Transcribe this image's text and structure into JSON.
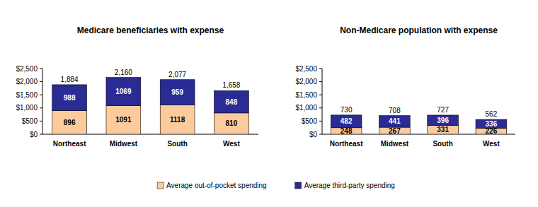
{
  "chart_data": [
    {
      "type": "bar",
      "title": "Medicare beneficiaries with expense",
      "categories": [
        "Northeast",
        "Midwest",
        "South",
        "West"
      ],
      "series": [
        {
          "name": "Average out-of-pocket spending",
          "color": "#fbcb9b",
          "values": [
            896,
            1091,
            1118,
            810
          ]
        },
        {
          "name": "Average third-party spending",
          "color": "#2b2b96",
          "values": [
            988,
            1069,
            959,
            848
          ]
        }
      ],
      "totals": [
        1884,
        2160,
        2077,
        1658
      ],
      "total_labels": [
        "1,884",
        "2,160",
        "2,077",
        "1,658"
      ],
      "ylim": [
        0,
        2500
      ],
      "yticks": [
        {
          "value": 0,
          "label": "$0"
        },
        {
          "value": 500,
          "label": "$500"
        },
        {
          "value": 1000,
          "label": "$1,000"
        },
        {
          "value": 1500,
          "label": "$1,500"
        },
        {
          "value": 2000,
          "label": "$2,000"
        },
        {
          "value": 2500,
          "label": "$2,500"
        }
      ],
      "stacked": true,
      "data_labels": true,
      "grid": false,
      "legend": "bottom"
    },
    {
      "type": "bar",
      "title": "Non-Medicare population with expense",
      "categories": [
        "Northeast",
        "Midwest",
        "South",
        "West"
      ],
      "series": [
        {
          "color": "#fbcb9b",
          "values": [
            248,
            267,
            331,
            226
          ]
        },
        {
          "color": "#2b2b96",
          "values": [
            482,
            441,
            396,
            336
          ]
        }
      ],
      "totals": [
        730,
        708,
        727,
        562
      ],
      "ylim": [
        0,
        2500
      ],
      "yticks": [
        {
          "value": 0,
          "label": "$0"
        },
        {
          "value": 500,
          "label": "$500"
        },
        {
          "value": 1000,
          "label": "$1,000"
        },
        {
          "value": 1500,
          "label": "$1,500"
        },
        {
          "value": 2000,
          "label": "$2,000"
        },
        {
          "value": 2500,
          "label": "$2,500"
        }
      ],
      "stacked": true,
      "data_labels": true,
      "grid": false
    }
  ]
}
